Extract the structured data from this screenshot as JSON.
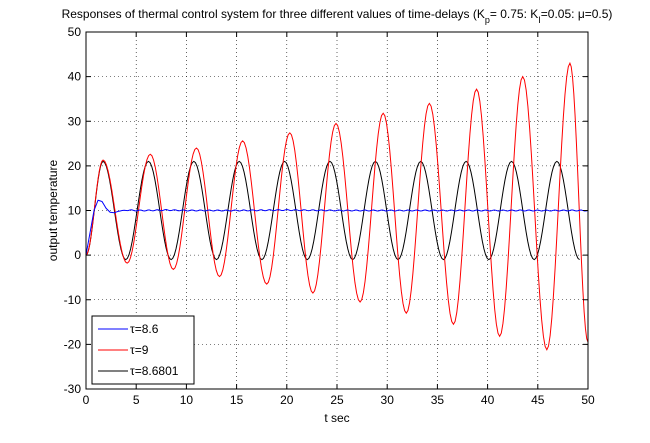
{
  "chart_data": {
    "type": "line",
    "title": {
      "prefix": "Responses of thermal control system for three different values of time-delays (K",
      "sub_p": "p",
      "mid1": "= 0.75: K",
      "sub_i": "I",
      "mid2": "=0.05: ",
      "mu": "μ",
      "suffix": "=0.5)"
    },
    "xlabel": "t sec",
    "ylabel": "output temperature",
    "xlim": [
      0,
      50
    ],
    "ylim": [
      -30,
      50
    ],
    "xticks": [
      0,
      5,
      10,
      15,
      20,
      25,
      30,
      35,
      40,
      45,
      50
    ],
    "yticks": [
      -30,
      -20,
      -10,
      0,
      10,
      20,
      30,
      40,
      50
    ],
    "grid": true,
    "legend_position": "bottom-left",
    "series": [
      {
        "name": "τ=8.6",
        "color": "#0000ff",
        "description": "damped oscillation settling at 10",
        "x": [
          0,
          0.4,
          0.8,
          1.2,
          1.6,
          2.0,
          2.4,
          2.8,
          3.2,
          3.6,
          4.0,
          5,
          6,
          8,
          10,
          15,
          20,
          25,
          30,
          35,
          40,
          45,
          50
        ],
        "y": [
          0,
          5,
          10,
          12.3,
          12.0,
          10.5,
          9.6,
          9.5,
          9.8,
          10.0,
          10.1,
          10.0,
          10.0,
          10.1,
          10.0,
          10.0,
          10.1,
          10.0,
          10.0,
          10.0,
          10.0,
          10.0,
          10.0
        ]
      },
      {
        "name": "τ=9",
        "color": "#ff0000",
        "description": "growing oscillation",
        "period": 4.65,
        "peaks": [
          {
            "x": 1.7,
            "y": 21.3
          },
          {
            "x": 6.4,
            "y": 22.6
          },
          {
            "x": 11.0,
            "y": 24.0
          },
          {
            "x": 15.6,
            "y": 25.6
          },
          {
            "x": 20.3,
            "y": 27.4
          },
          {
            "x": 24.9,
            "y": 29.5
          },
          {
            "x": 29.6,
            "y": 31.8
          },
          {
            "x": 34.2,
            "y": 34.0
          },
          {
            "x": 38.9,
            "y": 37.2
          },
          {
            "x": 43.5,
            "y": 40.0
          },
          {
            "x": 48.2,
            "y": 43.0
          }
        ],
        "troughs": [
          {
            "x": 4.1,
            "y": -1.8
          },
          {
            "x": 8.7,
            "y": -3.2
          },
          {
            "x": 13.3,
            "y": -4.8
          },
          {
            "x": 18.0,
            "y": -6.5
          },
          {
            "x": 22.6,
            "y": -8.5
          },
          {
            "x": 27.3,
            "y": -10.5
          },
          {
            "x": 31.9,
            "y": -13.0
          },
          {
            "x": 36.6,
            "y": -15.5
          },
          {
            "x": 41.2,
            "y": -18.2
          },
          {
            "x": 45.9,
            "y": -21.2
          }
        ],
        "end": {
          "x": 50,
          "y": -19.5
        }
      },
      {
        "name": "τ=8.6801",
        "color": "#000000",
        "description": "sustained oscillation",
        "period": 4.52,
        "peaks_y": 21,
        "troughs_y": -1,
        "first_peak_x": 1.7
      }
    ]
  }
}
